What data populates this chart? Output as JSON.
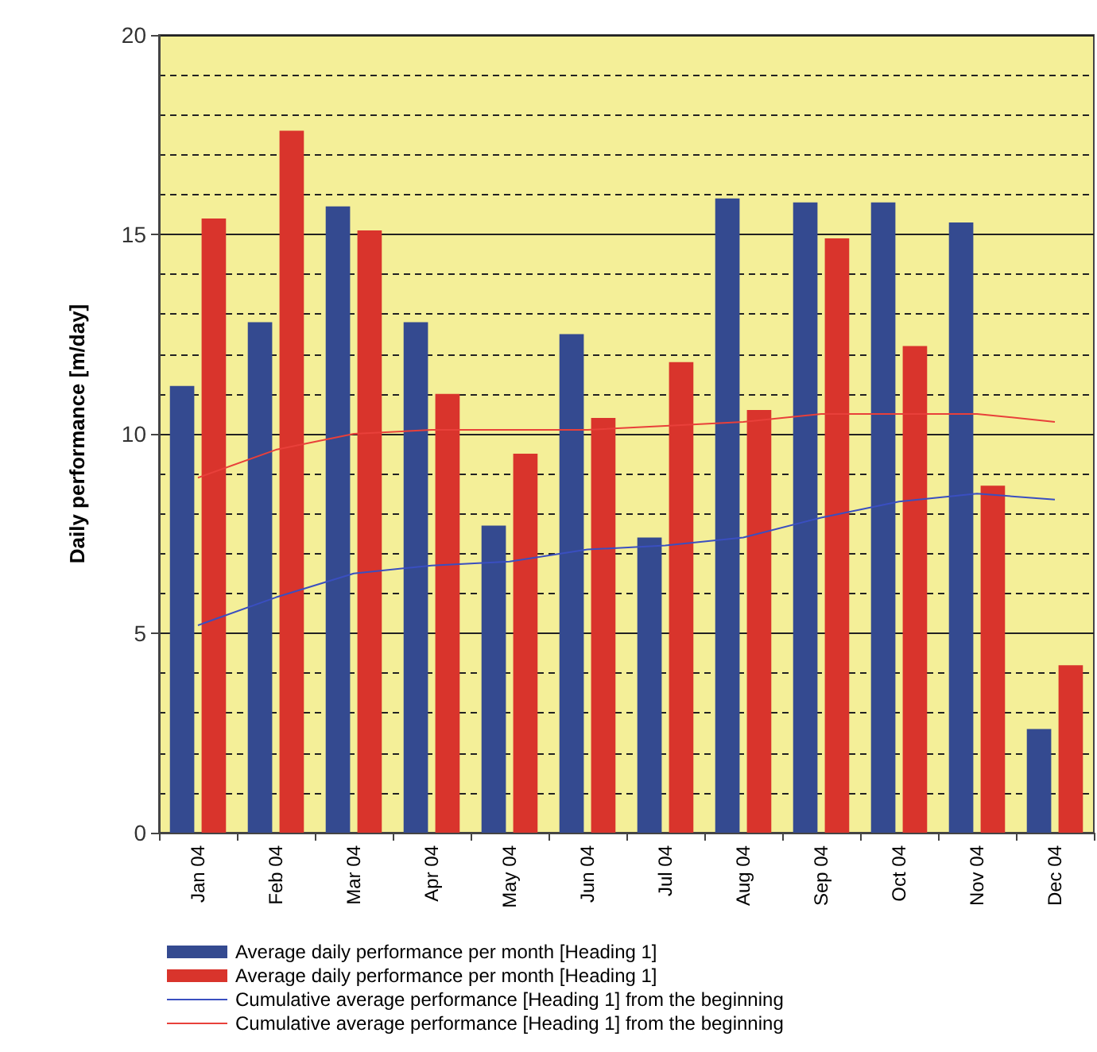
{
  "chart_data": {
    "type": "bar",
    "ylabel": "Daily performance [m/day]",
    "categories": [
      "Jan 04",
      "Feb 04",
      "Mar 04",
      "Apr 04",
      "May 04",
      "Jun 04",
      "Jul 04",
      "Aug 04",
      "Sep 04",
      "Oct 04",
      "Nov 04",
      "Dec 04"
    ],
    "series": [
      {
        "name": "Average daily performance per month [Heading 1]",
        "color": "#344a90",
        "values": [
          11.2,
          12.8,
          15.7,
          12.8,
          7.7,
          12.5,
          7.4,
          15.9,
          15.8,
          15.8,
          15.3,
          2.6
        ]
      },
      {
        "name": "Average daily performance per month [Heading 1]",
        "color": "#d9342c",
        "values": [
          15.4,
          17.6,
          15.1,
          11.0,
          9.5,
          10.4,
          11.8,
          10.6,
          14.9,
          12.2,
          8.7,
          4.2
        ]
      },
      {
        "name": "Cumulative average performance [Heading 1] from the beginning",
        "type": "line",
        "color": "#3a4fc0",
        "values": [
          5.2,
          5.9,
          6.5,
          6.7,
          6.8,
          7.1,
          7.2,
          7.4,
          7.9,
          8.3,
          8.5,
          8.35
        ]
      },
      {
        "name": "Cumulative average performance [Heading 1] from the beginning",
        "type": "line",
        "color": "#e8403a",
        "values": [
          8.9,
          9.6,
          10.0,
          10.1,
          10.1,
          10.1,
          10.2,
          10.3,
          10.5,
          10.5,
          10.5,
          10.3
        ]
      }
    ],
    "ylim": [
      0,
      20
    ],
    "yticks": [
      0,
      5,
      10,
      15,
      20
    ],
    "grid": true,
    "legend": "bottom",
    "marker": "none",
    "line_style": "solid"
  }
}
